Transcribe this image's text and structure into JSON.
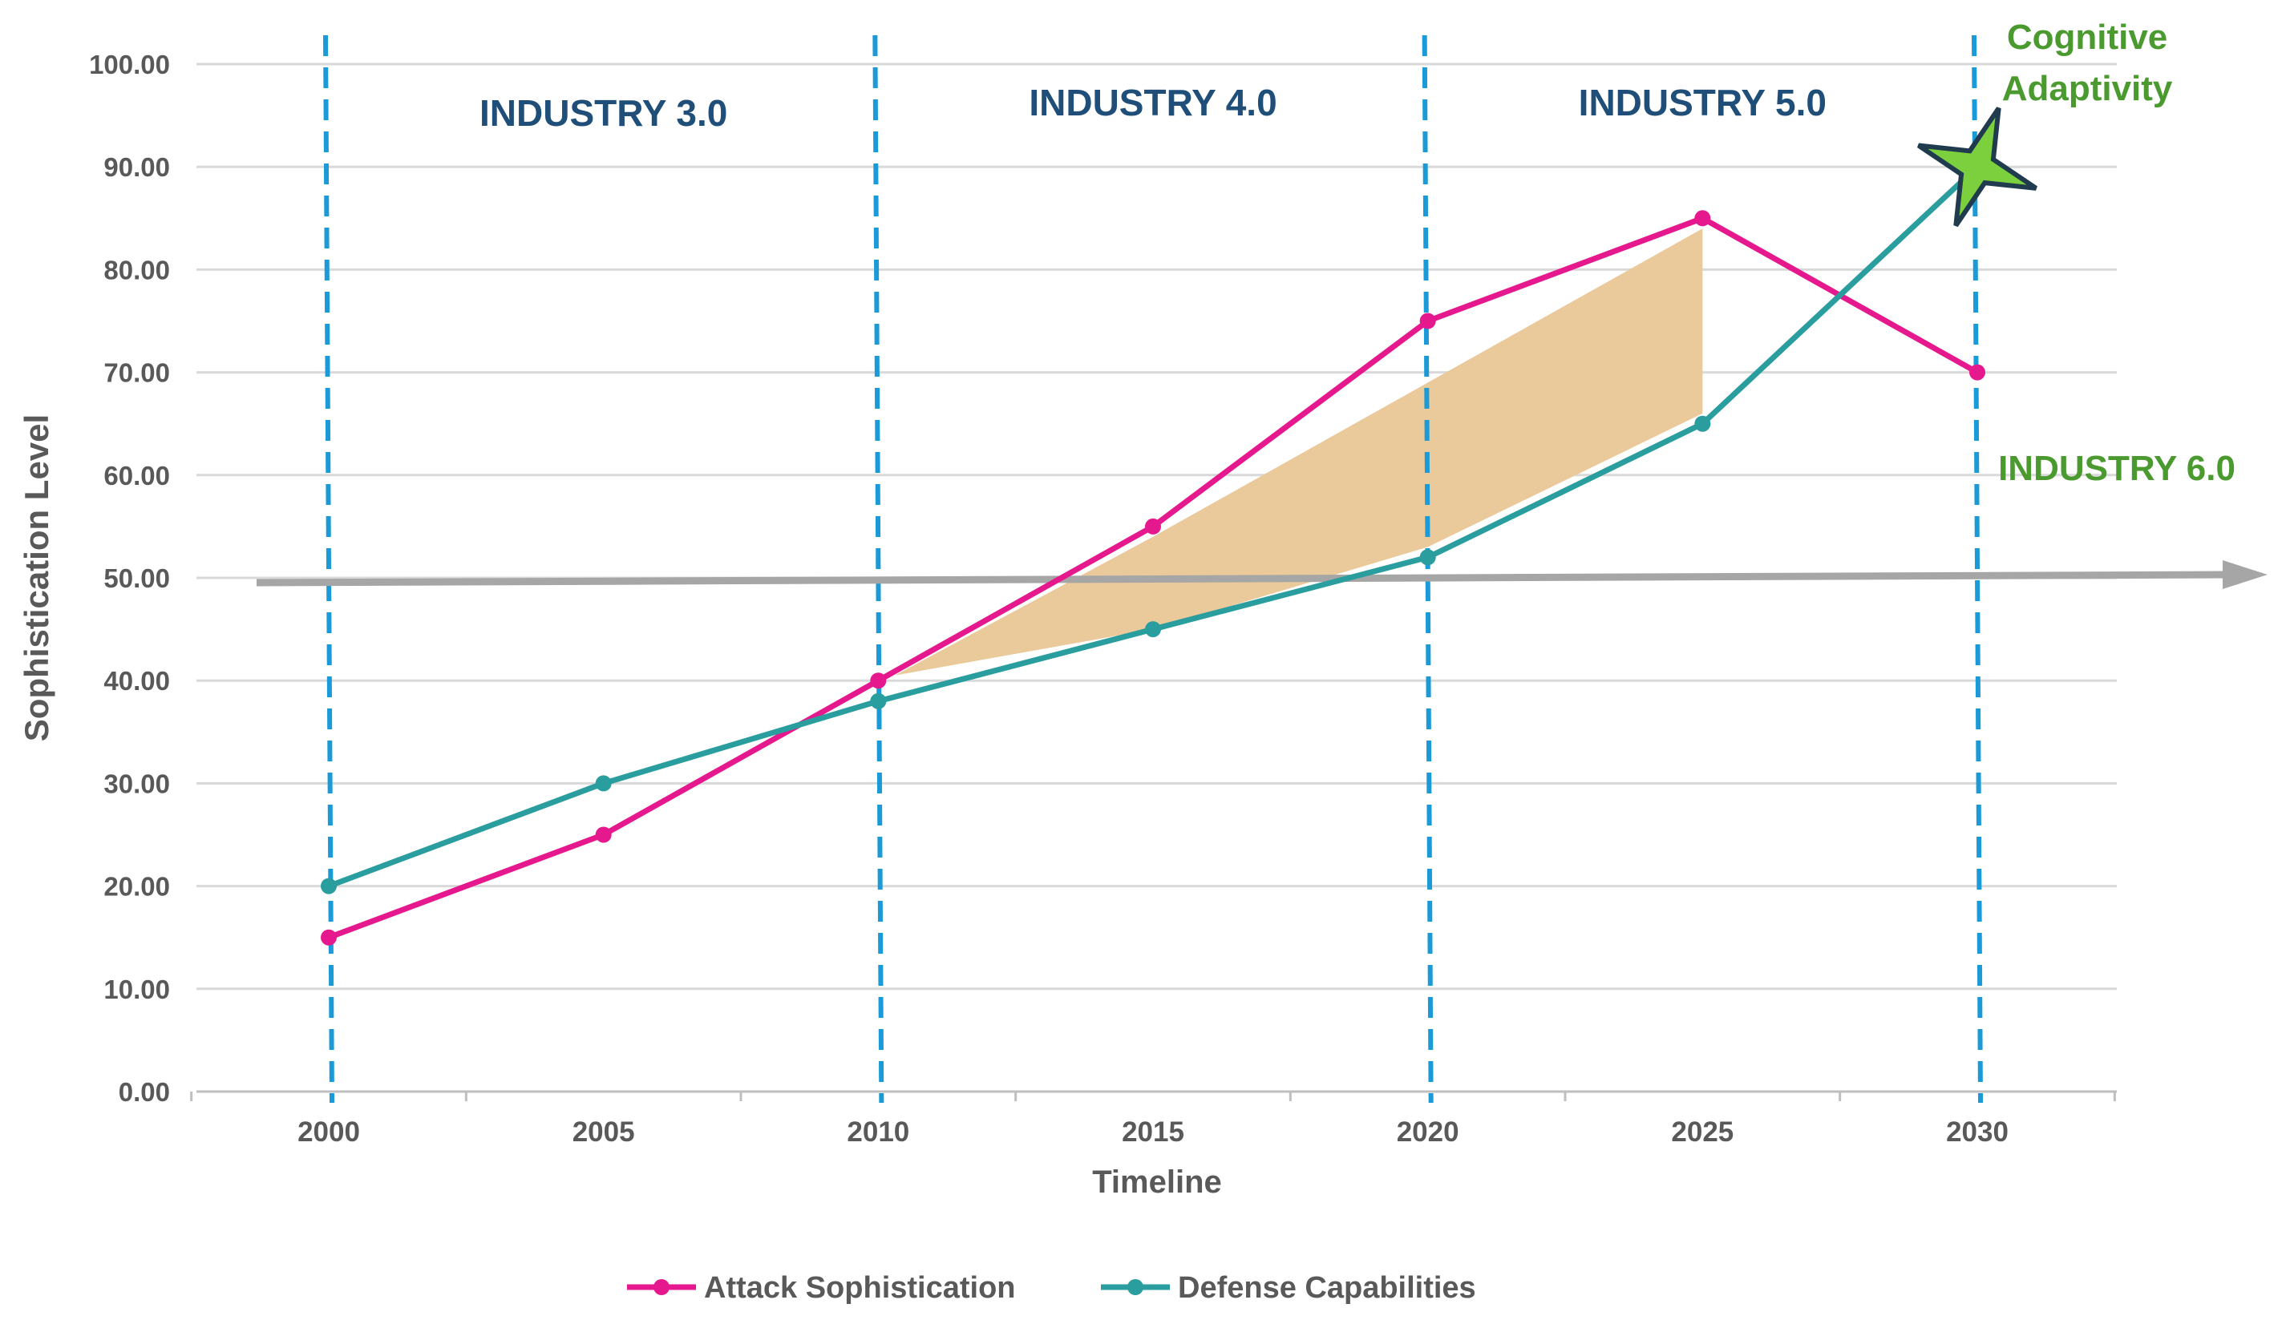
{
  "chart_data": {
    "type": "line",
    "title": "",
    "xlabel": "Timeline",
    "ylabel": "Sophistication Level",
    "categories": [
      "2000",
      "2005",
      "2010",
      "2015",
      "2020",
      "2025",
      "2030"
    ],
    "ylim": [
      0,
      100
    ],
    "yticks": [
      "0.00",
      "10.00",
      "20.00",
      "30.00",
      "40.00",
      "50.00",
      "60.00",
      "70.00",
      "80.00",
      "90.00",
      "100.00"
    ],
    "series": [
      {
        "name": "Attack Sophistication",
        "color": "#e6188e",
        "values": [
          15,
          25,
          40,
          55,
          75,
          85,
          70
        ]
      },
      {
        "name": "Defense Capabilities",
        "color": "#2a9d9f",
        "values": [
          20,
          30,
          38,
          45,
          52,
          65,
          90
        ]
      }
    ],
    "gap_band": {
      "color": "#eac99a",
      "upper": [
        [
          2010.3,
          40.5
        ],
        [
          2015,
          54
        ],
        [
          2020,
          69
        ],
        [
          2025,
          84
        ]
      ],
      "lower": [
        [
          2025,
          66
        ],
        [
          2020,
          53
        ],
        [
          2015,
          45
        ],
        [
          2010.3,
          40.5
        ]
      ]
    },
    "era_dividers": [
      2000,
      2010,
      2020,
      2030
    ],
    "era_labels": [
      {
        "text": "INDUSTRY 3.0",
        "x": 2005,
        "y": 94
      },
      {
        "text": "INDUSTRY 4.0",
        "x": 2015,
        "y": 95
      },
      {
        "text": "INDUSTRY 5.0",
        "x": 2025,
        "y": 95
      }
    ],
    "threshold": {
      "value": 50,
      "label": "INDUSTRY 6.0",
      "color": "#a6a6a6"
    },
    "annotations": [
      {
        "text": "Cognitive",
        "x": 2032,
        "y": 101.5
      },
      {
        "text": "Adaptivity",
        "x": 2032,
        "y": 96.5
      }
    ],
    "star": {
      "x": 2030,
      "y": 90,
      "fill": "#7cd03e",
      "stroke": "#1f3b4d"
    },
    "divider_color": "#1a9ad6",
    "grid": true,
    "legend_position": "bottom"
  }
}
